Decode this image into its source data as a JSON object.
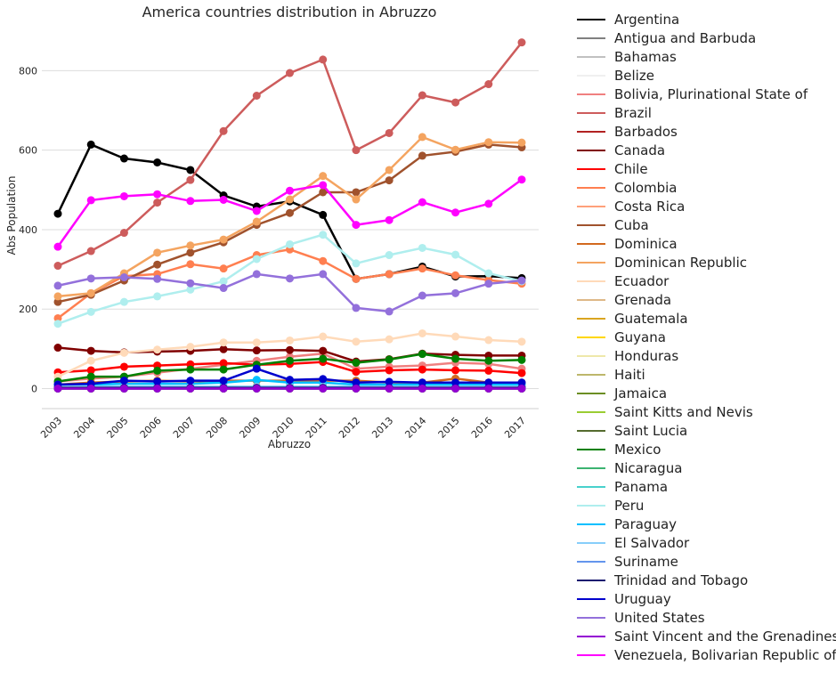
{
  "chart_data": {
    "type": "line",
    "title": "America countries distribution in Abruzzo",
    "xlabel": "Abruzzo",
    "ylabel": "Abs Population",
    "x": [
      "2003",
      "2004",
      "2005",
      "2006",
      "2007",
      "2008",
      "2009",
      "2010",
      "2011",
      "2012",
      "2013",
      "2014",
      "2015",
      "2016",
      "2017"
    ],
    "yticks": [
      0,
      200,
      400,
      600,
      800
    ],
    "ylim": [
      -50,
      960
    ],
    "grid": "horizontal",
    "legend_placement": "outside-right",
    "series": [
      {
        "name": "Argentina",
        "color": "#000000",
        "values": [
          440,
          614,
          579,
          569,
          550,
          486,
          458,
          471,
          437,
          276,
          288,
          307,
          282,
          283,
          278
        ]
      },
      {
        "name": "Antigua and Barbuda",
        "color": "#808080",
        "values": [
          0,
          0,
          0,
          0,
          0,
          0,
          0,
          0,
          0,
          0,
          0,
          0,
          0,
          0,
          0
        ]
      },
      {
        "name": "Bahamas",
        "color": "#c0c0c0",
        "values": [
          0,
          0,
          0,
          0,
          0,
          0,
          0,
          0,
          0,
          0,
          0,
          0,
          0,
          0,
          0
        ]
      },
      {
        "name": "Belize",
        "color": "#f0f0f0",
        "values": [
          0,
          0,
          0,
          0,
          0,
          0,
          0,
          0,
          0,
          0,
          0,
          0,
          0,
          0,
          0
        ]
      },
      {
        "name": "Bolivia, Plurinational State of",
        "color": "#f08080",
        "values": [
          18,
          25,
          30,
          40,
          50,
          60,
          70,
          80,
          88,
          50,
          55,
          58,
          65,
          62,
          50
        ]
      },
      {
        "name": "Brazil",
        "color": "#cd5c5c",
        "values": [
          309,
          346,
          392,
          468,
          525,
          648,
          737,
          794,
          828,
          600,
          643,
          738,
          720,
          766,
          871
        ]
      },
      {
        "name": "Barbados",
        "color": "#b22222",
        "values": [
          0,
          0,
          0,
          0,
          0,
          0,
          0,
          0,
          0,
          0,
          0,
          0,
          0,
          0,
          0
        ]
      },
      {
        "name": "Canada",
        "color": "#800000",
        "values": [
          103,
          95,
          91,
          93,
          95,
          99,
          96,
          97,
          95,
          68,
          74,
          88,
          85,
          83,
          83
        ]
      },
      {
        "name": "Chile",
        "color": "#ff0000",
        "values": [
          41,
          46,
          55,
          58,
          61,
          64,
          60,
          62,
          67,
          42,
          46,
          48,
          46,
          45,
          39
        ]
      },
      {
        "name": "Colombia",
        "color": "#ff7f50",
        "values": [
          177,
          240,
          283,
          288,
          313,
          302,
          336,
          350,
          321,
          276,
          288,
          302,
          285,
          273,
          264
        ]
      },
      {
        "name": "Costa Rica",
        "color": "#ffa07a",
        "values": [
          5,
          5,
          5,
          5,
          5,
          5,
          5,
          5,
          5,
          5,
          5,
          5,
          5,
          5,
          5
        ]
      },
      {
        "name": "Cuba",
        "color": "#a0522d",
        "values": [
          218,
          236,
          272,
          312,
          342,
          368,
          412,
          442,
          494,
          494,
          524,
          586,
          596,
          614,
          607
        ]
      },
      {
        "name": "Dominica",
        "color": "#d2691e",
        "values": [
          10,
          15,
          18,
          20,
          18,
          20,
          20,
          20,
          20,
          20,
          15,
          15,
          25,
          15,
          15
        ]
      },
      {
        "name": "Dominican Republic",
        "color": "#f4a460",
        "values": [
          232,
          240,
          290,
          342,
          360,
          375,
          420,
          476,
          535,
          476,
          550,
          633,
          601,
          620,
          619
        ]
      },
      {
        "name": "Ecuador",
        "color": "#ffdab9",
        "values": [
          30,
          70,
          90,
          98,
          105,
          116,
          116,
          121,
          131,
          118,
          124,
          139,
          131,
          122,
          118
        ]
      },
      {
        "name": "Grenada",
        "color": "#deb887",
        "values": [
          0,
          0,
          0,
          0,
          0,
          0,
          0,
          0,
          0,
          0,
          0,
          0,
          0,
          0,
          0
        ]
      },
      {
        "name": "Guatemala",
        "color": "#daa520",
        "values": [
          5,
          5,
          5,
          5,
          5,
          5,
          5,
          5,
          5,
          5,
          5,
          5,
          5,
          5,
          5
        ]
      },
      {
        "name": "Guyana",
        "color": "#ffd700",
        "values": [
          0,
          0,
          0,
          0,
          0,
          0,
          0,
          0,
          0,
          0,
          0,
          0,
          0,
          0,
          0
        ]
      },
      {
        "name": "Honduras",
        "color": "#eee8aa",
        "values": [
          5,
          5,
          5,
          5,
          5,
          5,
          5,
          5,
          5,
          5,
          5,
          5,
          5,
          5,
          5
        ]
      },
      {
        "name": "Haiti",
        "color": "#bdb76b",
        "values": [
          0,
          0,
          0,
          0,
          0,
          0,
          0,
          0,
          0,
          0,
          0,
          0,
          0,
          0,
          0
        ]
      },
      {
        "name": "Jamaica",
        "color": "#6b8e23",
        "values": [
          5,
          5,
          5,
          5,
          5,
          5,
          5,
          5,
          5,
          5,
          5,
          5,
          5,
          5,
          5
        ]
      },
      {
        "name": "Saint Kitts and Nevis",
        "color": "#9acd32",
        "values": [
          0,
          0,
          0,
          0,
          0,
          0,
          0,
          0,
          0,
          0,
          0,
          0,
          0,
          0,
          0
        ]
      },
      {
        "name": "Saint Lucia",
        "color": "#556b2f",
        "values": [
          0,
          0,
          0,
          0,
          0,
          0,
          0,
          0,
          0,
          0,
          0,
          0,
          0,
          0,
          0
        ]
      },
      {
        "name": "Mexico",
        "color": "#008000",
        "values": [
          18,
          30,
          30,
          45,
          48,
          48,
          60,
          70,
          75,
          65,
          73,
          87,
          75,
          70,
          72
        ]
      },
      {
        "name": "Nicaragua",
        "color": "#3cb371",
        "values": [
          3,
          3,
          3,
          3,
          3,
          3,
          3,
          3,
          3,
          3,
          3,
          3,
          3,
          3,
          3
        ]
      },
      {
        "name": "Panama",
        "color": "#48d1cc",
        "values": [
          3,
          3,
          3,
          3,
          3,
          3,
          3,
          3,
          3,
          3,
          3,
          3,
          3,
          3,
          3
        ]
      },
      {
        "name": "Peru",
        "color": "#afeeee",
        "values": [
          163,
          193,
          218,
          232,
          249,
          270,
          326,
          363,
          387,
          315,
          336,
          354,
          337,
          290,
          270
        ]
      },
      {
        "name": "Paraguay",
        "color": "#00bfff",
        "values": [
          10,
          10,
          12,
          12,
          12,
          15,
          22,
          15,
          15,
          10,
          10,
          10,
          10,
          10,
          10
        ]
      },
      {
        "name": "El Salvador",
        "color": "#87cefa",
        "values": [
          5,
          5,
          5,
          5,
          5,
          5,
          5,
          5,
          5,
          5,
          5,
          5,
          5,
          5,
          5
        ]
      },
      {
        "name": "Suriname",
        "color": "#6495ed",
        "values": [
          0,
          0,
          0,
          0,
          0,
          0,
          0,
          0,
          0,
          0,
          0,
          0,
          0,
          0,
          0
        ]
      },
      {
        "name": "Trinidad and Tobago",
        "color": "#191970",
        "values": [
          2,
          2,
          2,
          2,
          2,
          2,
          2,
          2,
          2,
          2,
          2,
          2,
          2,
          2,
          2
        ]
      },
      {
        "name": "Uruguay",
        "color": "#0000cd",
        "values": [
          10,
          12,
          20,
          18,
          20,
          20,
          50,
          22,
          24,
          15,
          17,
          15,
          15,
          15,
          15
        ]
      },
      {
        "name": "United States",
        "color": "#9370db",
        "values": [
          259,
          277,
          280,
          276,
          265,
          253,
          288,
          277,
          288,
          203,
          194,
          234,
          240,
          264,
          272
        ]
      },
      {
        "name": "Saint Vincent and the Grenadines",
        "color": "#9400d3",
        "values": [
          0,
          0,
          0,
          0,
          0,
          0,
          0,
          0,
          0,
          0,
          0,
          0,
          0,
          0,
          0
        ]
      },
      {
        "name": "Venezuela, Bolivarian Republic of",
        "color": "#ff00ff",
        "values": [
          357,
          474,
          484,
          489,
          472,
          475,
          447,
          498,
          512,
          412,
          424,
          469,
          443,
          465,
          526
        ]
      }
    ]
  }
}
